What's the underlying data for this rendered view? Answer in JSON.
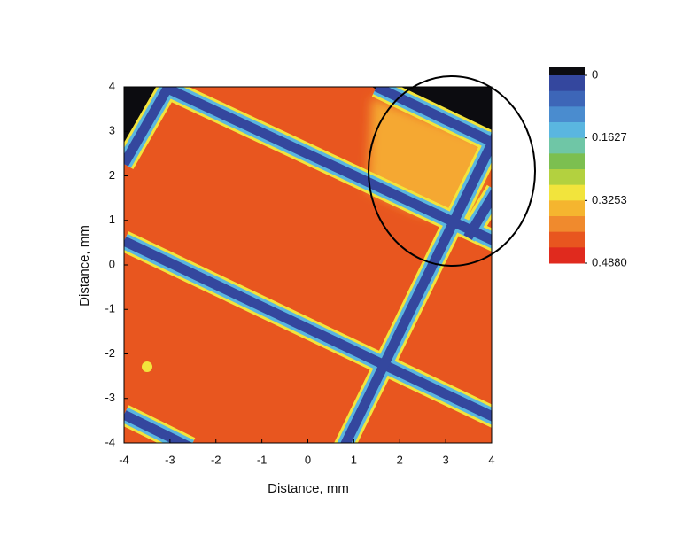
{
  "chart_data": {
    "type": "contour",
    "xlabel": "Distance, mm",
    "ylabel": "Distance, mm",
    "xlim": [
      -4,
      4
    ],
    "ylim": [
      -4,
      4
    ],
    "xticks": [
      -4,
      -3,
      -2,
      -1,
      0,
      1,
      2,
      3,
      4
    ],
    "yticks": [
      -4,
      -3,
      -2,
      -1,
      0,
      1,
      2,
      3,
      4
    ],
    "colorbar": {
      "zlim": [
        0,
        0.488
      ],
      "ticks": [
        0,
        0.1627,
        0.3253,
        {
          "value": 0.488,
          "label": "0.4880"
        }
      ],
      "colors": [
        "#34479e",
        "#3d66b8",
        "#4a8ccf",
        "#5ab6e0",
        "#6fc6a6",
        "#7cbf50",
        "#b3d13f",
        "#f2e43c",
        "#f5b52f",
        "#f08a2d",
        "#e8561f",
        "#e02a1e"
      ]
    }
  }
}
